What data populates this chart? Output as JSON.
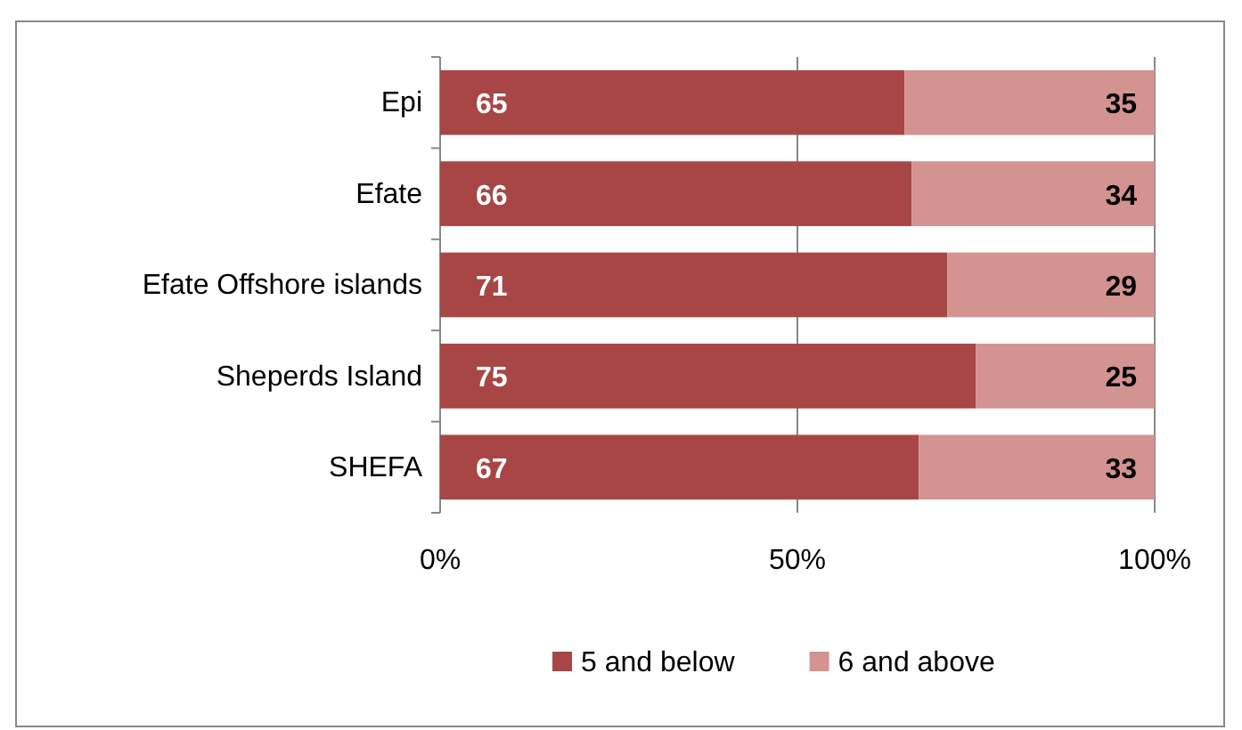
{
  "chart_data": {
    "type": "bar",
    "orientation": "horizontal",
    "stacked": true,
    "categories": [
      "Epi",
      "Efate",
      "Efate Offshore islands",
      "Sheperds Island",
      "SHEFA"
    ],
    "series": [
      {
        "name": "5 and below",
        "color": "#a84646",
        "values": [
          65,
          66,
          71,
          75,
          67
        ]
      },
      {
        "name": "6 and above",
        "color": "#d39391",
        "values": [
          35,
          34,
          29,
          25,
          33
        ]
      }
    ],
    "xlim": [
      0,
      100
    ],
    "xticks": [
      {
        "value": 0,
        "label": "0%"
      },
      {
        "value": 50,
        "label": "50%"
      },
      {
        "value": 100,
        "label": "100%"
      }
    ],
    "grid": "x",
    "data_labels": true,
    "legend": "bottom"
  }
}
